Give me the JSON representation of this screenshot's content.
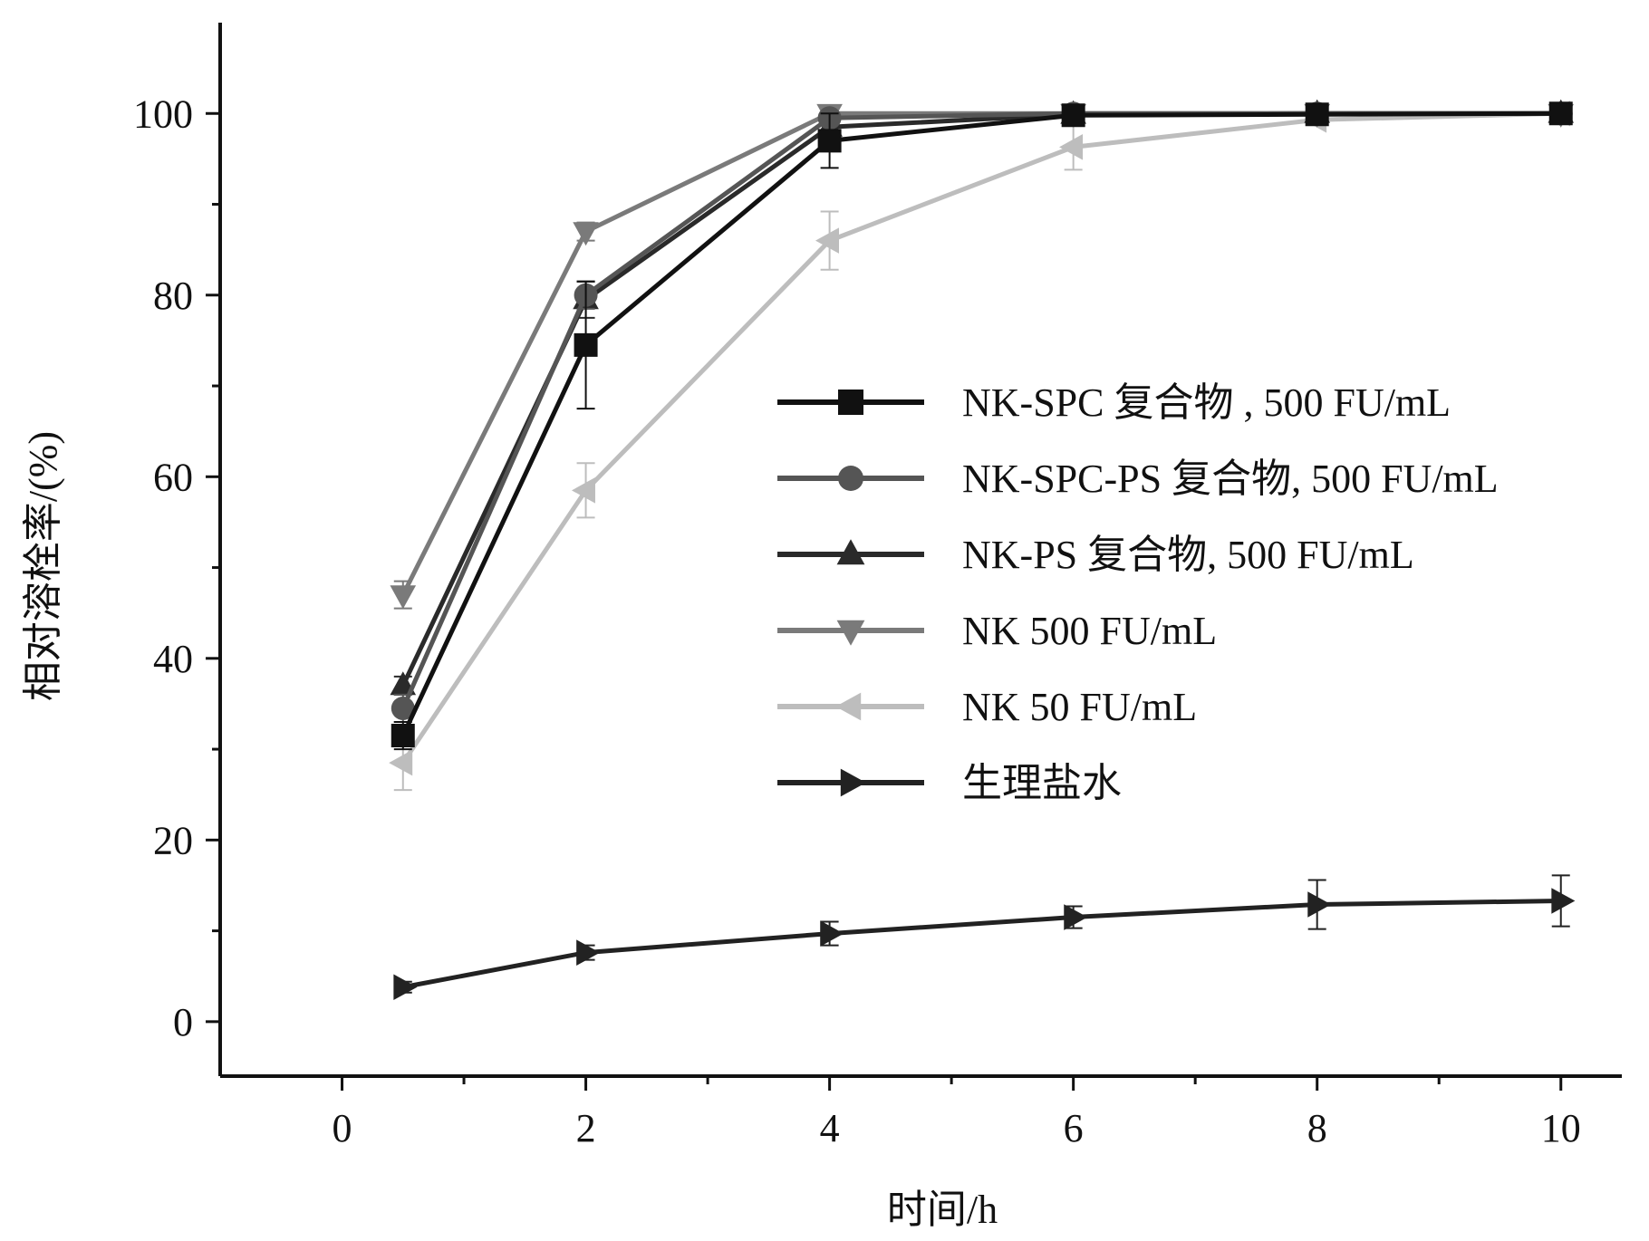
{
  "chart_data": {
    "type": "line",
    "xlabel": "时间/h",
    "ylabel": "相对溶栓率/(%)",
    "xlim": [
      -1,
      10.5
    ],
    "ylim": [
      -6,
      110
    ],
    "x_ticks": [
      0,
      2,
      4,
      6,
      8,
      10
    ],
    "y_ticks": [
      0,
      20,
      40,
      60,
      80,
      100
    ],
    "x_tick_labels": [
      "0",
      "2",
      "4",
      "6",
      "8",
      "10"
    ],
    "y_tick_labels": [
      "0",
      "20",
      "40",
      "60",
      "80",
      "100"
    ],
    "legend_position": "right-center",
    "grid": false,
    "x": [
      0.5,
      2,
      4,
      6,
      8,
      10
    ],
    "series": [
      {
        "name": "NK-SPC 复合物 , 500 FU/mL",
        "marker": "square",
        "color": "#111111",
        "values": [
          31.5,
          74.5,
          97.0,
          99.8,
          99.9,
          100.0
        ],
        "errors": [
          1.5,
          7.0,
          3.0,
          0.5,
          0.5,
          0.5
        ]
      },
      {
        "name": "NK-SPC-PS 复合物, 500 FU/mL",
        "marker": "circle",
        "color": "#555555",
        "values": [
          34.5,
          80.0,
          99.5,
          100.0,
          100.0,
          100.0
        ],
        "errors": [
          1.5,
          1.5,
          0.5,
          0.3,
          0.3,
          0.3
        ]
      },
      {
        "name": "NK-PS 复合物, 500 FU/mL",
        "marker": "triangle-up",
        "color": "#2a2a2a",
        "values": [
          37.0,
          79.5,
          98.5,
          99.9,
          100.0,
          100.0
        ],
        "errors": [
          1.0,
          2.0,
          1.0,
          0.3,
          0.3,
          0.3
        ]
      },
      {
        "name": "NK 500 FU/mL",
        "marker": "triangle-down",
        "color": "#7a7a7a",
        "values": [
          47.0,
          87.0,
          100.0,
          100.0,
          100.0,
          100.0
        ],
        "errors": [
          1.5,
          1.0,
          0.3,
          0.3,
          0.3,
          0.3
        ]
      },
      {
        "name": "NK 50 FU/mL",
        "marker": "triangle-left",
        "color": "#bdbdbd",
        "values": [
          28.5,
          58.5,
          86.0,
          96.3,
          99.3,
          100.0
        ],
        "errors": [
          3.0,
          3.0,
          3.2,
          2.5,
          0.5,
          0.3
        ]
      },
      {
        "name": "生理盐水",
        "marker": "triangle-right",
        "color": "#222222",
        "values": [
          3.8,
          7.6,
          9.7,
          11.5,
          12.9,
          13.3
        ],
        "errors": [
          0.6,
          0.8,
          1.3,
          1.2,
          2.7,
          2.8
        ]
      }
    ]
  }
}
